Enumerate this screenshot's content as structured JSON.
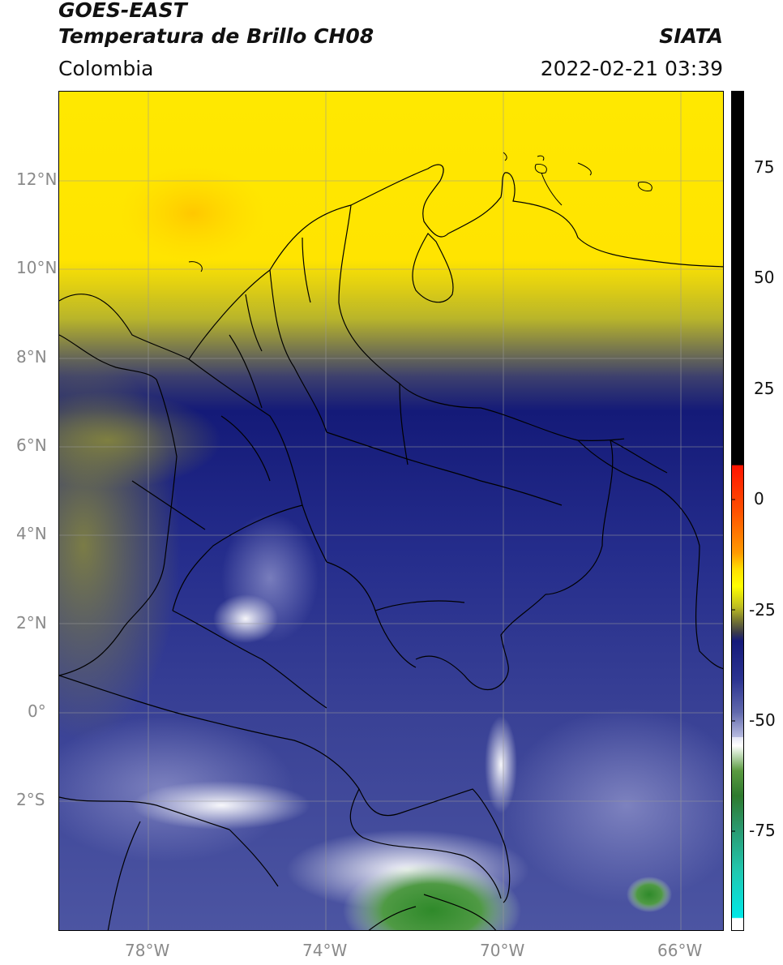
{
  "header": {
    "line1": "GOES-EAST",
    "line2": "Temperatura de Brillo CH08",
    "agency": "SIATA",
    "region": "Colombia",
    "timestamp": "2022-02-21 03:39"
  },
  "axes": {
    "lat_labels": [
      "12°N",
      "10°N",
      "8°N",
      "6°N",
      "4°N",
      "2°N",
      "0°",
      "2°S"
    ],
    "lon_labels": [
      "78°W",
      "74°W",
      "70°W",
      "66°W"
    ]
  },
  "colorbar": {
    "tick_labels": [
      "75",
      "50",
      "25",
      "0",
      "-25",
      "-50",
      "-75"
    ],
    "colors": [
      "#000000",
      "#ff1a00",
      "#ff8c00",
      "#ffff00",
      "#7a7a30",
      "#1c1f7a",
      "#7878b4",
      "#ffffff",
      "#3a8a2a",
      "#20c0a0",
      "#00e8e8"
    ]
  },
  "legend_colors": {
    "warm": "#ffea00",
    "transition": "#a7a52c",
    "cold": "#1d2380",
    "mid": "#4d55a0",
    "coldest": "#ffffff",
    "green": "#3f8c38"
  }
}
